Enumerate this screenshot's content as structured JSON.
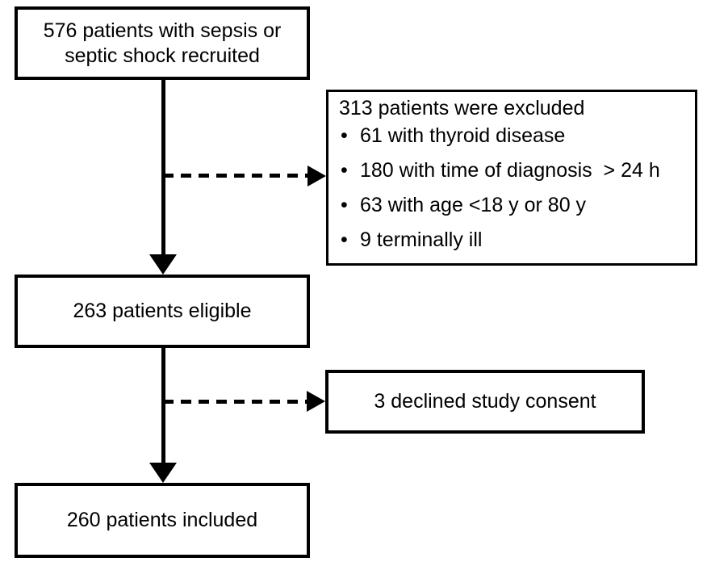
{
  "flowchart": {
    "colors": {
      "line": "#000000",
      "background": "#ffffff",
      "text": "#000000"
    },
    "bullet_glyph": "•",
    "nodes": {
      "recruited": {
        "line1": "576 patients with sepsis or",
        "line2": "septic shock recruited"
      },
      "excluded": {
        "title": "313 patients were excluded",
        "bullets": [
          "61 with thyroid disease",
          "180 with time of diagnosis  > 24 h",
          "63 with age <18 y or 80 y",
          "9 terminally ill"
        ]
      },
      "eligible": {
        "label": "263 patients eligible"
      },
      "declined": {
        "label": "3 declined study consent"
      },
      "included": {
        "label": "260 patients included"
      }
    }
  }
}
